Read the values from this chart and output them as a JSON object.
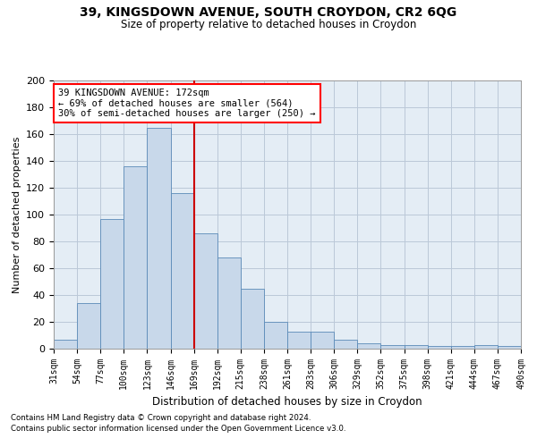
{
  "title1": "39, KINGSDOWN AVENUE, SOUTH CROYDON, CR2 6QG",
  "title2": "Size of property relative to detached houses in Croydon",
  "xlabel": "Distribution of detached houses by size in Croydon",
  "ylabel": "Number of detached properties",
  "footnote1": "Contains HM Land Registry data © Crown copyright and database right 2024.",
  "footnote2": "Contains public sector information licensed under the Open Government Licence v3.0.",
  "annotation_line1": "39 KINGSDOWN AVENUE: 172sqm",
  "annotation_line2": "← 69% of detached houses are smaller (564)",
  "annotation_line3": "30% of semi-detached houses are larger (250) →",
  "bar_color": "#c8d8ea",
  "bar_edge_color": "#5a8ab8",
  "grid_color": "#bbc8d8",
  "background_color": "#e4edf5",
  "vline_color": "#cc0000",
  "tick_labels": [
    "31sqm",
    "54sqm",
    "77sqm",
    "100sqm",
    "123sqm",
    "146sqm",
    "169sqm",
    "192sqm",
    "215sqm",
    "238sqm",
    "261sqm",
    "283sqm",
    "306sqm",
    "329sqm",
    "352sqm",
    "375sqm",
    "398sqm",
    "421sqm",
    "444sqm",
    "467sqm",
    "490sqm"
  ],
  "values": [
    7,
    34,
    97,
    136,
    165,
    116,
    86,
    68,
    45,
    20,
    13,
    13,
    7,
    4,
    3,
    3,
    2,
    2,
    3,
    2
  ],
  "ylim": [
    0,
    200
  ],
  "yticks": [
    0,
    20,
    40,
    60,
    80,
    100,
    120,
    140,
    160,
    180,
    200
  ],
  "vline_x": 6.0
}
